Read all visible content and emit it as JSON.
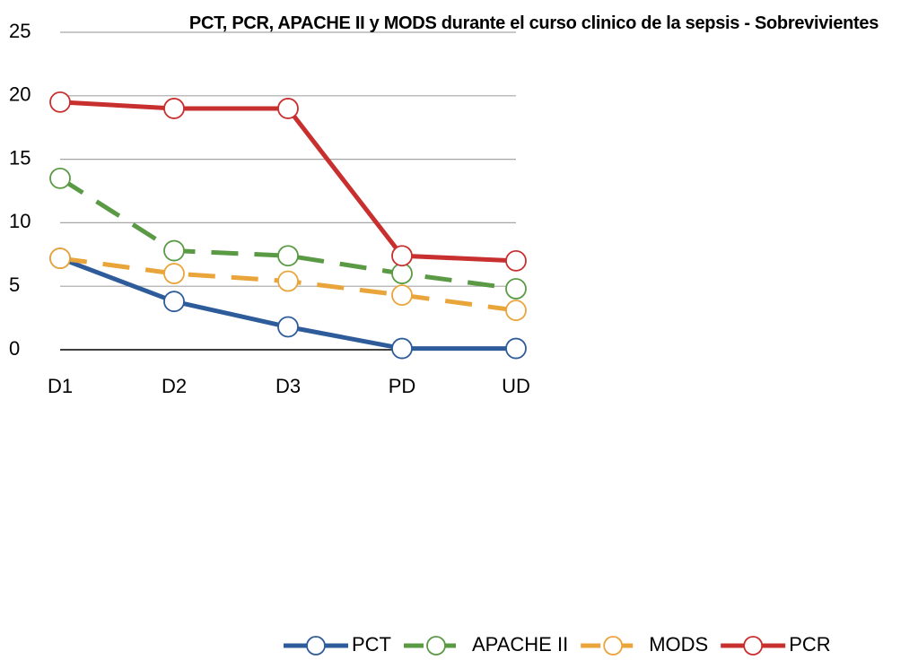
{
  "chart_data": {
    "type": "line",
    "title": "PCT, PCR, APACHE II y MODS durante el curso clinico de la sepsis - Sobrevivientes",
    "categories": [
      "D1",
      "D2",
      "D3",
      "PD",
      "UD"
    ],
    "series": [
      {
        "name": "PCT",
        "color": "#2e5c9a",
        "dashed": false,
        "values": [
          7.2,
          3.8,
          1.8,
          0.1,
          0.1
        ]
      },
      {
        "name": "APACHE II",
        "color": "#5a9a45",
        "dashed": true,
        "values": [
          13.5,
          7.8,
          7.4,
          6.0,
          4.8
        ]
      },
      {
        "name": "MODS",
        "color": "#e9a43a",
        "dashed": true,
        "values": [
          7.2,
          6.0,
          5.4,
          4.3,
          3.1
        ]
      },
      {
        "name": "PCR",
        "color": "#c8302f",
        "dashed": false,
        "values": [
          19.5,
          19.0,
          19.0,
          7.4,
          7.0
        ]
      }
    ],
    "ylim": [
      0,
      25
    ],
    "yticks": [
      0,
      5,
      10,
      15,
      20,
      25
    ],
    "grid": true,
    "legend": "bottom"
  }
}
